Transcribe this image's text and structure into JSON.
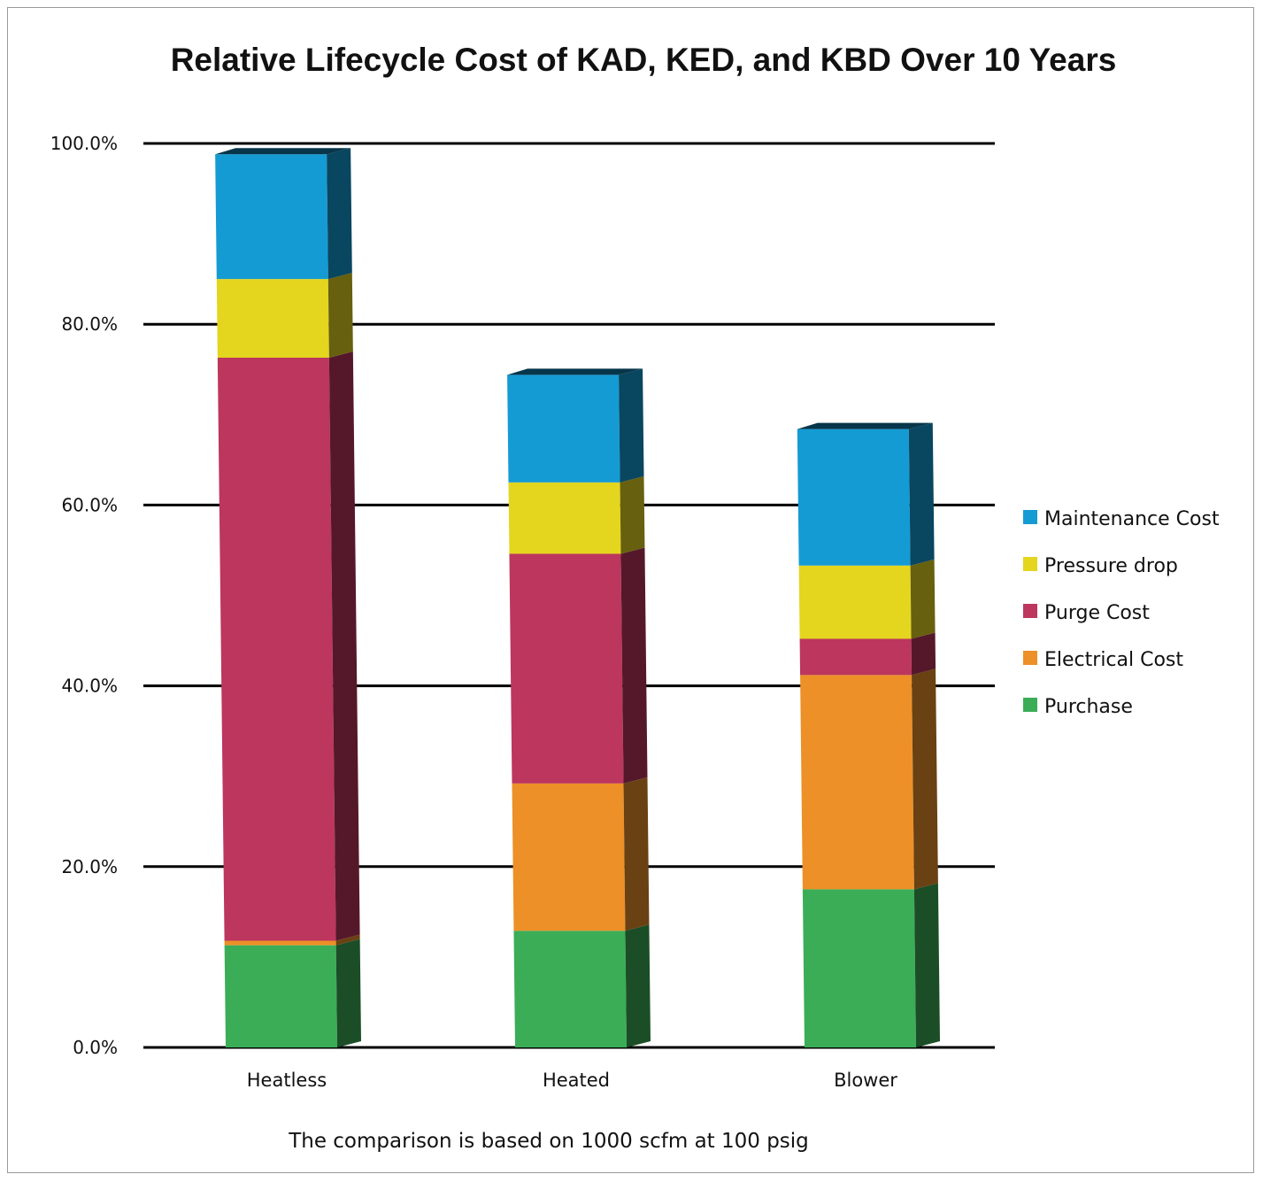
{
  "chart_data": {
    "type": "bar",
    "stacked": true,
    "title": "Relative Lifecycle Cost of KAD, KED, and KBD Over 10 Years",
    "xlabel": "",
    "ylabel": "",
    "ylim": [
      0,
      100
    ],
    "y_ticks": [
      "0.0%",
      "20.0%",
      "40.0%",
      "60.0%",
      "80.0%",
      "100.0%"
    ],
    "y_tick_values": [
      0,
      20,
      40,
      60,
      80,
      100
    ],
    "grid": true,
    "legend_position": "right",
    "categories": [
      "Heatless",
      "Heated",
      "Blower"
    ],
    "series": [
      {
        "name": "Purchase",
        "color": "#3bad57",
        "values": [
          11.3,
          12.9,
          17.5
        ]
      },
      {
        "name": "Electrical Cost",
        "color": "#ec9027",
        "values": [
          0.5,
          16.3,
          23.7
        ]
      },
      {
        "name": "Purge Cost",
        "color": "#bc365e",
        "values": [
          64.5,
          25.4,
          4.0
        ]
      },
      {
        "name": "Pressure drop",
        "color": "#e4d51f",
        "values": [
          8.7,
          7.9,
          8.1
        ]
      },
      {
        "name": "Maintenance Cost",
        "color": "#159bd3",
        "values": [
          13.8,
          11.9,
          15.1
        ]
      }
    ],
    "note": "The comparison is based on 1000 scfm at 100 psig"
  }
}
